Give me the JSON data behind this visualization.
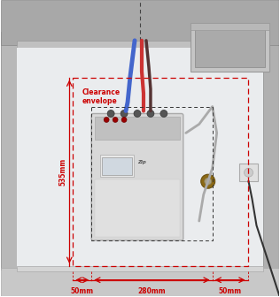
{
  "bg_color": "#f0f0f0",
  "cabinet_color": "#c8c8c8",
  "cabinet_inner_color": "#e8e8e8",
  "countertop_color": "#b0b0b0",
  "floor_color": "#d0d0d0",
  "sink_color": "#c0c0c0",
  "unit_color": "#dcdcdc",
  "red_dim_color": "#cc0000",
  "dashed_red": "#cc0000",
  "dashed_black": "#333333",
  "annotation_color": "#cc0000",
  "text_color": "#cc0000",
  "dim_label_535": "535mm",
  "dim_label_50a": "50mm",
  "dim_label_280": "280mm",
  "dim_label_50b": "50mm",
  "clearance_label1": "Clearance",
  "clearance_label2": "envelope",
  "figsize": [
    3.16,
    3.36
  ],
  "dpi": 100
}
